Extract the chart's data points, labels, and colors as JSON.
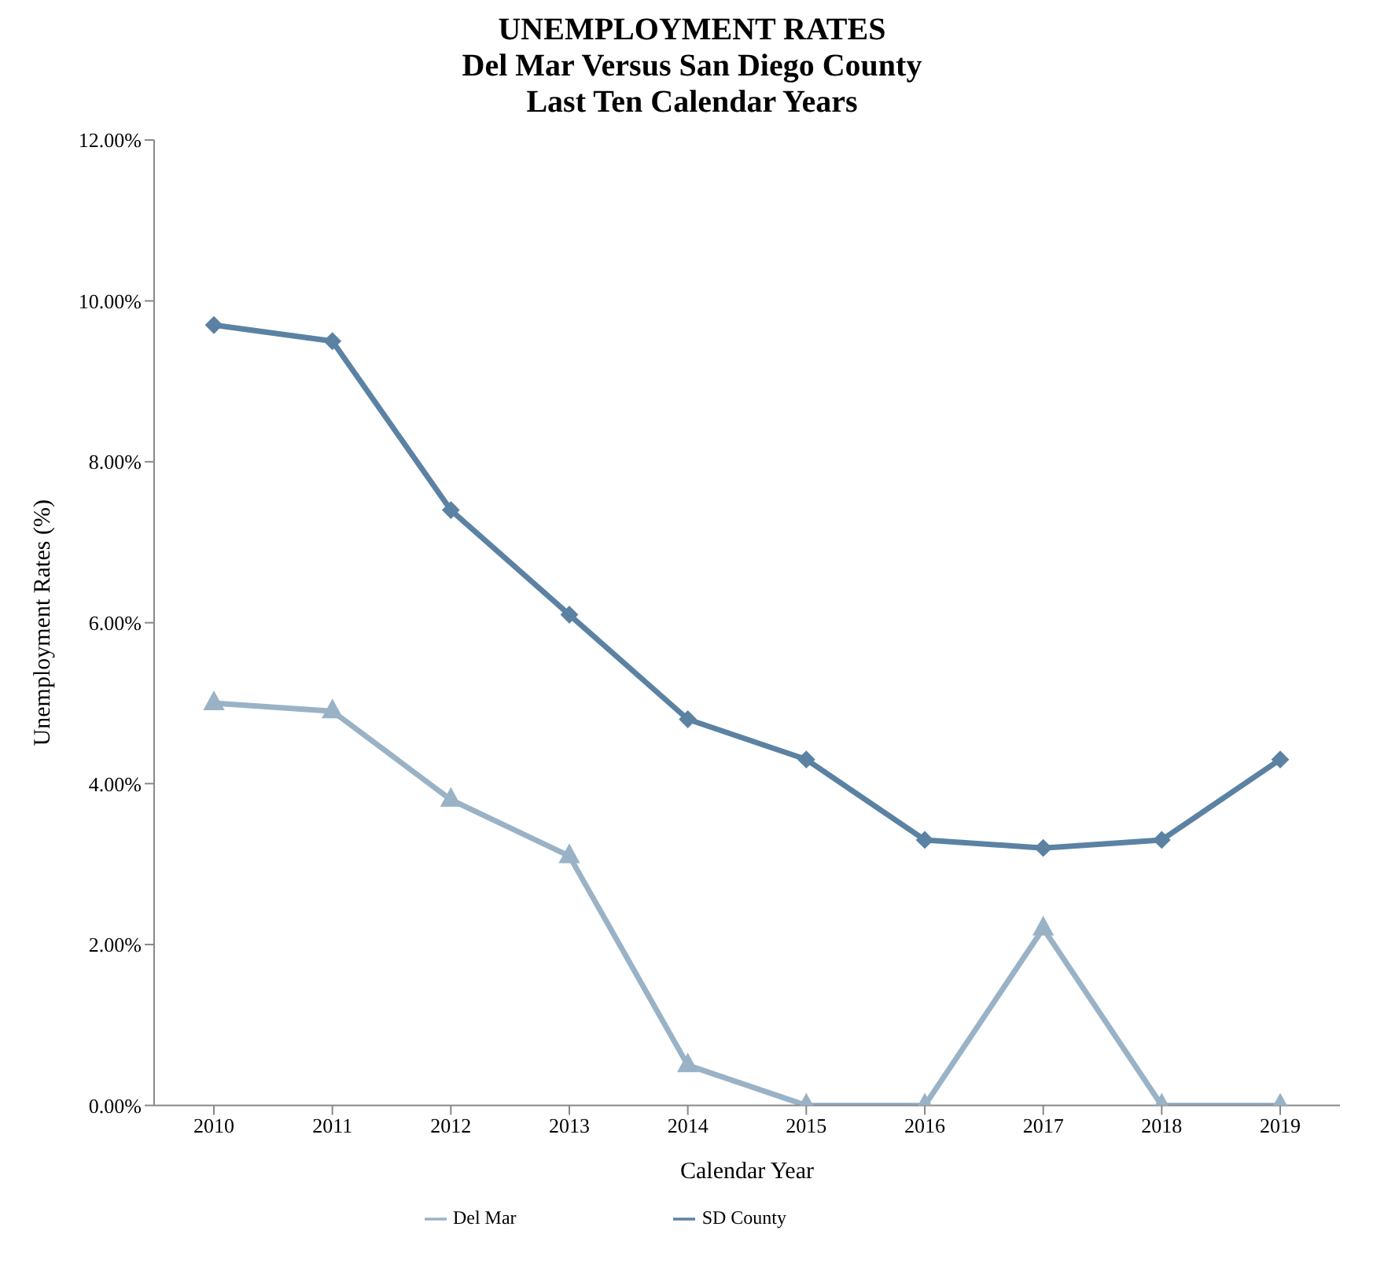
{
  "chart_data": {
    "type": "line",
    "title": "UNEMPLOYMENT RATES\nDel Mar Versus San Diego County\nLast Ten Calendar Years",
    "xlabel": "Calendar Year",
    "ylabel": "Unemployment Rates (%)",
    "categories": [
      "2010",
      "2011",
      "2012",
      "2013",
      "2014",
      "2015",
      "2016",
      "2017",
      "2018",
      "2019"
    ],
    "series": [
      {
        "name": "Del Mar",
        "color": "#9ab2c6",
        "marker": "triangle",
        "values": [
          5.0,
          4.9,
          3.8,
          3.1,
          0.5,
          0,
          0,
          2.2,
          0,
          0
        ]
      },
      {
        "name": "SD County",
        "color": "#5b82a3",
        "marker": "diamond",
        "values": [
          9.7,
          9.5,
          7.4,
          6.1,
          4.8,
          4.3,
          3.3,
          3.2,
          3.3,
          4.3
        ]
      }
    ],
    "ylim": [
      0,
      12
    ],
    "yticks": [
      {
        "value": 0,
        "label": "0.00%"
      },
      {
        "value": 2,
        "label": "2.00%"
      },
      {
        "value": 4,
        "label": "4.00%"
      },
      {
        "value": 6,
        "label": "6.00%"
      },
      {
        "value": 8,
        "label": "8.00%"
      },
      {
        "value": 10,
        "label": "10.00%"
      },
      {
        "value": 12,
        "label": "12.00%"
      }
    ],
    "grid": false,
    "legend": "bottom",
    "line_style": "solid"
  }
}
